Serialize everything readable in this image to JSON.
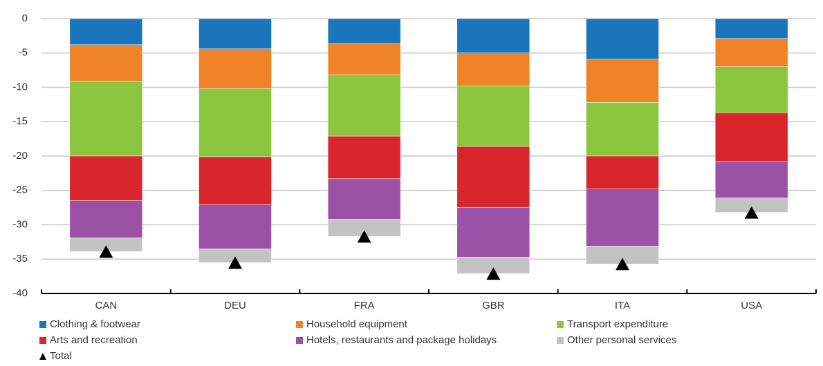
{
  "chart_data": {
    "type": "bar",
    "stacked": true,
    "categories": [
      "CAN",
      "DEU",
      "FRA",
      "GBR",
      "ITA",
      "USA"
    ],
    "series": [
      {
        "name": "Clothing & footwear",
        "color": "#1a75bc",
        "values": [
          -3.8,
          -4.4,
          -3.6,
          -5.0,
          -5.9,
          -2.9
        ]
      },
      {
        "name": "Household equipment",
        "color": "#f08227",
        "values": [
          -5.3,
          -5.8,
          -4.6,
          -4.8,
          -6.3,
          -4.1
        ]
      },
      {
        "name": "Transport expenditure",
        "color": "#8cc63f",
        "values": [
          -10.9,
          -9.9,
          -8.9,
          -8.8,
          -7.8,
          -6.7
        ]
      },
      {
        "name": "Arts and recreation",
        "color": "#d9262c",
        "values": [
          -6.5,
          -7.0,
          -6.2,
          -8.9,
          -4.8,
          -7.1
        ]
      },
      {
        "name": "Hotels, restaurants and package holidays",
        "color": "#9b52a6",
        "values": [
          -5.4,
          -6.4,
          -5.9,
          -7.2,
          -8.3,
          -5.3
        ]
      },
      {
        "name": "Other personal services",
        "color": "#c3c3c3",
        "values": [
          -2.0,
          -2.0,
          -2.5,
          -2.4,
          -2.6,
          -2.1
        ]
      },
      {
        "name": "Total",
        "color": "#000000",
        "marker": "triangle",
        "values": [
          -33.9,
          -35.5,
          -31.7,
          -37.1,
          -35.7,
          -28.2
        ]
      }
    ],
    "ylim": [
      -40,
      0
    ],
    "yticks": [
      0,
      -5,
      -10,
      -15,
      -20,
      -25,
      -30,
      -35,
      -40
    ],
    "grid": true
  }
}
